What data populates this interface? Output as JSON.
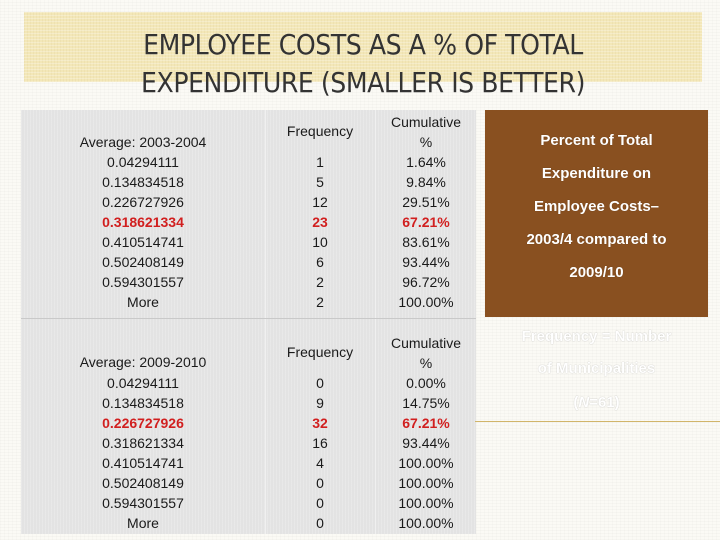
{
  "title": {
    "line1": "EMPLOYEE COSTS AS A % OF TOTAL",
    "line2": "EXPENDITURE (SMALLER IS BETTER)"
  },
  "table1": {
    "header_bin": "Average: 2003-2004",
    "header_frequency": "Frequency",
    "header_cumulative_l1": "Cumulative",
    "header_cumulative_l2": "%",
    "rows": [
      {
        "bin": "0.04294111",
        "freq": "1",
        "cum": "1.64%",
        "highlight": false
      },
      {
        "bin": "0.134834518",
        "freq": "5",
        "cum": "9.84%",
        "highlight": false
      },
      {
        "bin": "0.226727926",
        "freq": "12",
        "cum": "29.51%",
        "highlight": false
      },
      {
        "bin": "0.318621334",
        "freq": "23",
        "cum": "67.21%",
        "highlight": true
      },
      {
        "bin": "0.410514741",
        "freq": "10",
        "cum": "83.61%",
        "highlight": false
      },
      {
        "bin": "0.502408149",
        "freq": "6",
        "cum": "93.44%",
        "highlight": false
      },
      {
        "bin": "0.594301557",
        "freq": "2",
        "cum": "96.72%",
        "highlight": false
      },
      {
        "bin": "More",
        "freq": "2",
        "cum": "100.00%",
        "highlight": false
      }
    ]
  },
  "table2": {
    "header_bin": "Average:  2009-2010",
    "header_frequency": "Frequency",
    "header_cumulative_l1": "Cumulative",
    "header_cumulative_l2": "%",
    "rows": [
      {
        "bin": "0.04294111",
        "freq": "0",
        "cum": "0.00%",
        "highlight": false
      },
      {
        "bin": "0.134834518",
        "freq": "9",
        "cum": "14.75%",
        "highlight": false
      },
      {
        "bin": "0.226727926",
        "freq": "32",
        "cum": "67.21%",
        "highlight": true
      },
      {
        "bin": "0.318621334",
        "freq": "16",
        "cum": "93.44%",
        "highlight": false
      },
      {
        "bin": "0.410514741",
        "freq": "4",
        "cum": "100.00%",
        "highlight": false
      },
      {
        "bin": "0.502408149",
        "freq": "0",
        "cum": "100.00%",
        "highlight": false
      },
      {
        "bin": "0.594301557",
        "freq": "0",
        "cum": "100.00%",
        "highlight": false
      },
      {
        "bin": "More",
        "freq": "0",
        "cum": "100.00%",
        "highlight": false
      }
    ]
  },
  "sidebar": {
    "lines": [
      "Percent of Total",
      "Expenditure on",
      "Employee Costs–",
      "2003/4 compared to",
      "2009/10"
    ],
    "note_lines": [
      "Frequency = Number",
      "of Municipalities"
    ],
    "n_prefix": "(",
    "n_italic": "N",
    "n_suffix": "=61)"
  },
  "colors": {
    "title_band": "#f3e7b8",
    "sidebar_bg": "#895020",
    "highlight_red": "#d11f1f",
    "table_bg": "#e3e3e3"
  }
}
